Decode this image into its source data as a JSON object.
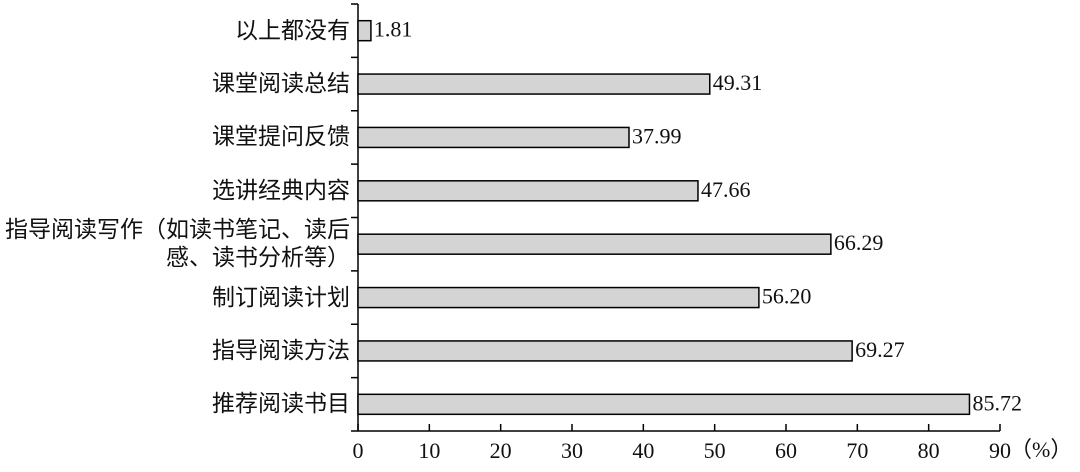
{
  "chart_data": {
    "type": "bar",
    "orientation": "horizontal",
    "categories": [
      "以上都没有",
      "课堂阅读总结",
      "课堂提问反馈",
      "选讲经典内容",
      "指导阅读写作（如读书笔记、读后感、读书分析等）",
      "制订阅读计划",
      "指导阅读方法",
      "推荐阅读书目"
    ],
    "values": [
      1.81,
      49.31,
      37.99,
      47.66,
      66.29,
      56.2,
      69.27,
      85.72
    ],
    "value_labels": [
      "1.81",
      "49.31",
      "37.99",
      "47.66",
      "66.29",
      "56.20",
      "69.27",
      "85.72"
    ],
    "color": "#d4d4d4",
    "xlim": [
      0,
      90
    ],
    "xticks": [
      0,
      10,
      20,
      30,
      40,
      50,
      60,
      70,
      80,
      90
    ],
    "x_label": "（%）"
  }
}
